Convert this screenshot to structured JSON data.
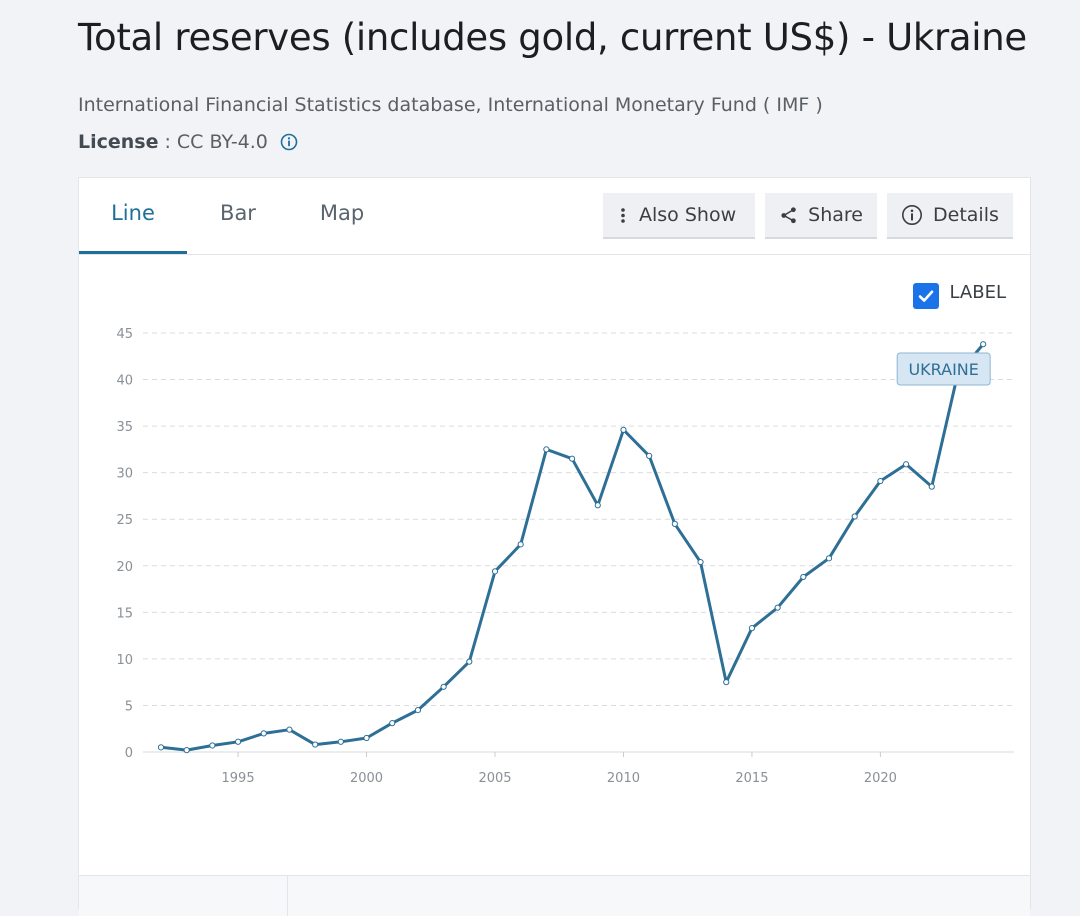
{
  "page": {
    "title": "Total reserves (includes gold, current US$) - Ukraine",
    "source": "International Financial Statistics database, International Monetary Fund ( IMF )",
    "license_label": "License",
    "license_separator": ":",
    "license_value": "CC BY-4.0"
  },
  "tabs": [
    {
      "label": "Line",
      "active": true
    },
    {
      "label": "Bar",
      "active": false
    },
    {
      "label": "Map",
      "active": false
    }
  ],
  "toolbar": {
    "also_show": "Also Show",
    "share": "Share",
    "details": "Details"
  },
  "label_toggle": {
    "text": "LABEL",
    "checked": true
  },
  "colors": {
    "accent": "#1f6f9a",
    "line": "#2e6f96",
    "checkbox": "#1a73e8"
  },
  "chart_data": {
    "type": "line",
    "series": [
      {
        "name": "UKRAINE",
        "x": [
          1992,
          1993,
          1994,
          1995,
          1996,
          1997,
          1998,
          1999,
          2000,
          2001,
          2002,
          2003,
          2004,
          2005,
          2006,
          2007,
          2008,
          2009,
          2010,
          2011,
          2012,
          2013,
          2014,
          2015,
          2016,
          2017,
          2018,
          2019,
          2020,
          2021,
          2022,
          2023,
          2024
        ],
        "values": [
          0.5,
          0.2,
          0.7,
          1.1,
          2.0,
          2.4,
          0.8,
          1.1,
          1.5,
          3.1,
          4.5,
          7.0,
          9.7,
          19.4,
          22.3,
          32.5,
          31.5,
          26.5,
          34.6,
          31.8,
          24.5,
          20.4,
          7.5,
          13.3,
          15.5,
          18.8,
          20.8,
          25.3,
          29.1,
          30.9,
          28.5,
          40.5,
          43.8
        ]
      }
    ],
    "xticks": [
      1995,
      2000,
      2005,
      2010,
      2015,
      2020
    ],
    "yticks": [
      0,
      5,
      10,
      15,
      20,
      25,
      30,
      35,
      40,
      45
    ],
    "xlim": [
      1991.3,
      2025.2
    ],
    "ylim": [
      0,
      45
    ],
    "grid": true,
    "series_label": "UKRAINE"
  }
}
